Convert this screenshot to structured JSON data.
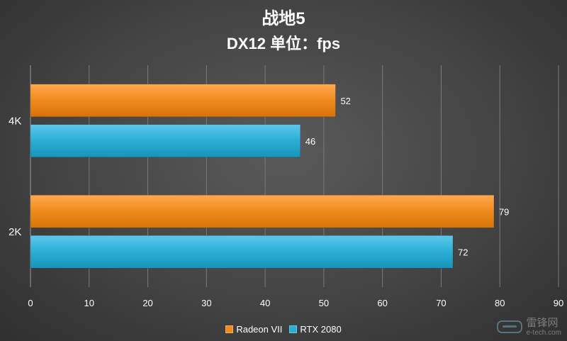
{
  "chart_data": {
    "type": "bar",
    "orientation": "horizontal",
    "title": "战地5",
    "subtitle": "DX12 单位：fps",
    "xlabel": "",
    "ylabel": "",
    "categories": [
      "4K",
      "2K"
    ],
    "series": [
      {
        "name": "Radeon VII",
        "values": [
          52,
          79
        ],
        "color": "#f08a1c"
      },
      {
        "name": "RTX 2080",
        "values": [
          46,
          72
        ],
        "color": "#2aaed6"
      }
    ],
    "xlim": [
      0,
      90
    ],
    "xticks": [
      0,
      10,
      20,
      30,
      40,
      50,
      60,
      70,
      80,
      90
    ],
    "grid": true,
    "legend_position": "bottom"
  },
  "watermark": {
    "name": "雷锋网",
    "domain": "e-tech.com"
  }
}
